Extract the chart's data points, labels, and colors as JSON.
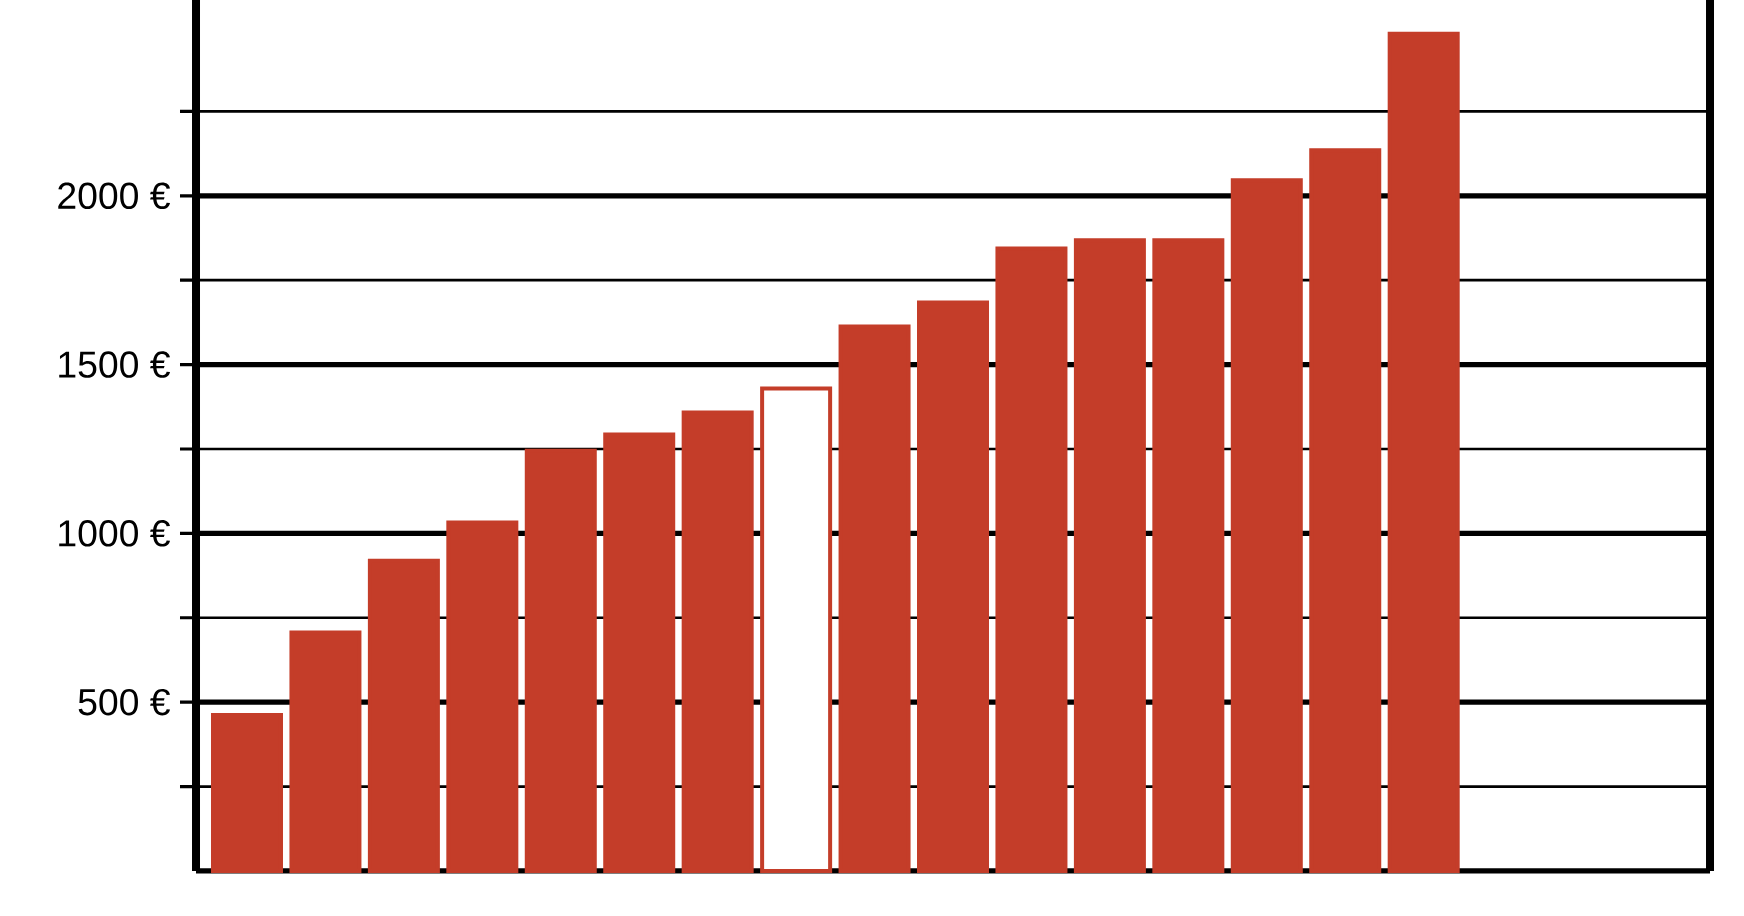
{
  "chart_data": {
    "type": "bar",
    "categories": [
      null,
      null,
      null,
      null,
      null,
      null,
      null,
      null,
      null,
      null,
      null,
      null,
      null,
      null,
      null,
      null,
      null,
      null,
      null
    ],
    "values": [
      462,
      706,
      919,
      1032,
      1245,
      1293,
      1358,
      1429,
      1613,
      1684,
      1844,
      1868,
      1868,
      2046,
      2135,
      2480,
      null,
      null,
      null
    ],
    "color": "#c43d29",
    "colors": [
      "#c43d29",
      "#c43d29",
      "#c43d29",
      "#c43d29",
      "#c43d29",
      "#c43d29",
      "#c43d29",
      "#ffffff",
      "#c43d29",
      "#c43d29",
      "#c43d29",
      "#c43d29",
      "#c43d29",
      "#c43d29",
      "#c43d29",
      "#c43d29",
      "#c43d29",
      "#c43d29",
      "#c43d29"
    ],
    "ylim": [
      0,
      2580
    ],
    "yticks": [
      {
        "value": 250,
        "label": null
      },
      {
        "value": 500,
        "label": "500 €"
      },
      {
        "value": 750,
        "label": null
      },
      {
        "value": 1000,
        "label": "1000 €"
      },
      {
        "value": 1250,
        "label": null
      },
      {
        "value": 1500,
        "label": "1500 €"
      },
      {
        "value": 1750,
        "label": null
      },
      {
        "value": 2000,
        "label": "2000 €"
      },
      {
        "value": 2250,
        "label": null
      }
    ],
    "grid": "y",
    "tick_labels": "y"
  }
}
